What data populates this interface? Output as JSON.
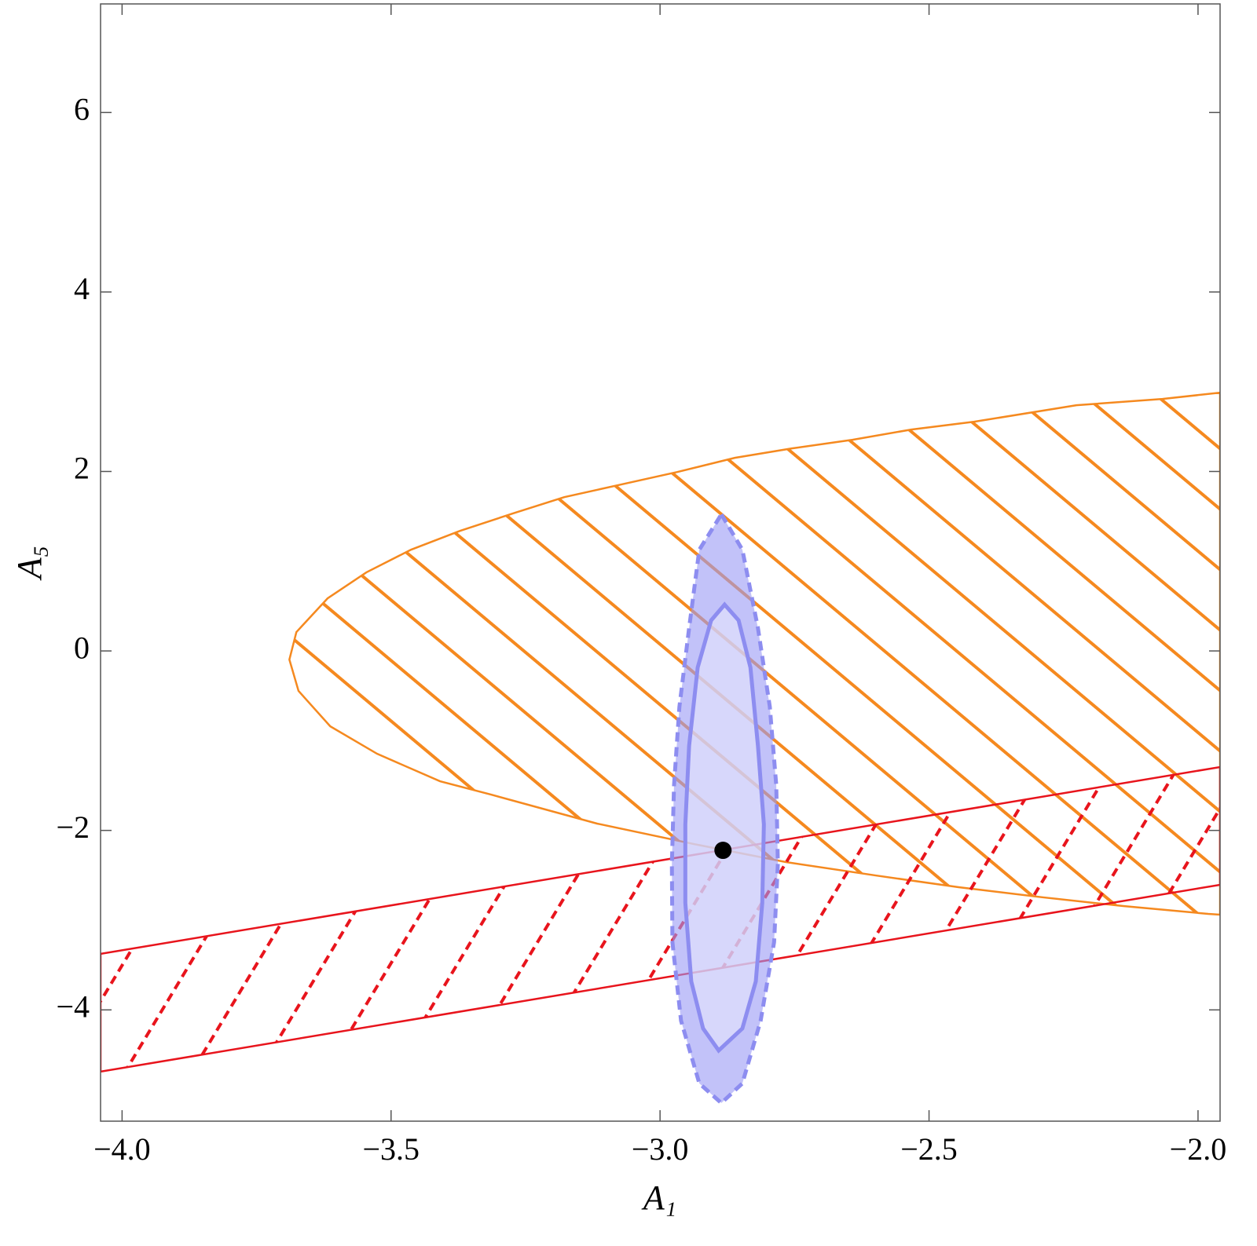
{
  "chart_data": {
    "type": "region",
    "xlabel": "A₁",
    "ylabel": "A₅",
    "xlim": [
      -4.04,
      -1.959
    ],
    "ylim": [
      -5.24,
      7.21
    ],
    "xticks": [
      {
        "value": -4.0,
        "label": "−4.0"
      },
      {
        "value": -3.5,
        "label": "−3.5"
      },
      {
        "value": -3.0,
        "label": "−3.0"
      },
      {
        "value": -2.5,
        "label": "−2.5"
      },
      {
        "value": -2.0,
        "label": "−2.0"
      }
    ],
    "yticks": [
      {
        "value": -4,
        "label": "−4"
      },
      {
        "value": -2,
        "label": "−2"
      },
      0,
      2,
      4,
      6
    ],
    "series": [
      {
        "color": "#f5891f",
        "fill": "none",
        "hatch": "down",
        "line": "solid",
        "x": [
          -1.959,
          -2.066,
          -2.226,
          -2.416,
          -2.533,
          -2.642,
          -2.755,
          -2.861,
          -2.968,
          -3.073,
          -3.178,
          -3.274,
          -3.372,
          -3.463,
          -3.546,
          -3.618,
          -3.676,
          -3.689,
          -3.672,
          -3.613,
          -3.526,
          -3.409,
          -3.314,
          -3.117,
          -2.937,
          -2.766,
          -2.599,
          -2.445,
          -2.288,
          -2.139,
          -1.981,
          -1.959
        ],
        "y": [
          2.878,
          2.808,
          2.738,
          2.554,
          2.467,
          2.353,
          2.257,
          2.152,
          1.994,
          1.854,
          1.714,
          1.531,
          1.338,
          1.128,
          0.875,
          0.586,
          0.21,
          -0.096,
          -0.446,
          -0.84,
          -1.146,
          -1.452,
          -1.601,
          -1.924,
          -2.152,
          -2.353,
          -2.502,
          -2.633,
          -2.746,
          -2.843,
          -2.93,
          -2.939
        ]
      },
      {
        "color": "#e8141c",
        "fill": "none",
        "hatch": "up",
        "line": "solid",
        "x": [
          -4.04,
          -1.959,
          -1.959,
          -4.04
        ],
        "y": [
          -3.376,
          -1.294,
          -2.606,
          -4.688
        ]
      },
      {
        "color": "#8d8df0",
        "fill": "#9a9af5",
        "hatch": "none",
        "line": "dashed",
        "x": [
          -2.886,
          -2.847,
          -2.818,
          -2.796,
          -2.784,
          -2.781,
          -2.788,
          -2.813,
          -2.847,
          -2.886,
          -2.927,
          -2.961,
          -2.977,
          -2.978,
          -2.974,
          -2.964,
          -2.946,
          -2.927
        ],
        "y": [
          1.522,
          1.128,
          0.254,
          -0.621,
          -1.496,
          -2.37,
          -3.245,
          -4.12,
          -4.819,
          -5.038,
          -4.819,
          -4.12,
          -3.245,
          -2.37,
          -1.496,
          -0.621,
          0.254,
          1.128
        ]
      },
      {
        "color": "#8d8df0",
        "fill": "#e4e4fc",
        "hatch": "none",
        "line": "solid",
        "x": [
          -2.88,
          -2.854,
          -2.832,
          -2.818,
          -2.807,
          -2.81,
          -2.822,
          -2.847,
          -2.891,
          -2.92,
          -2.942,
          -2.953,
          -2.953,
          -2.946,
          -2.93,
          -2.905
        ],
        "y": [
          0.516,
          0.341,
          -0.184,
          -1.058,
          -1.933,
          -2.808,
          -3.682,
          -4.207,
          -4.452,
          -4.207,
          -3.682,
          -2.808,
          -1.933,
          -1.058,
          -0.184,
          0.341
        ]
      }
    ],
    "point": {
      "x": -2.883,
      "y": -2.222,
      "color": "#000000"
    }
  }
}
